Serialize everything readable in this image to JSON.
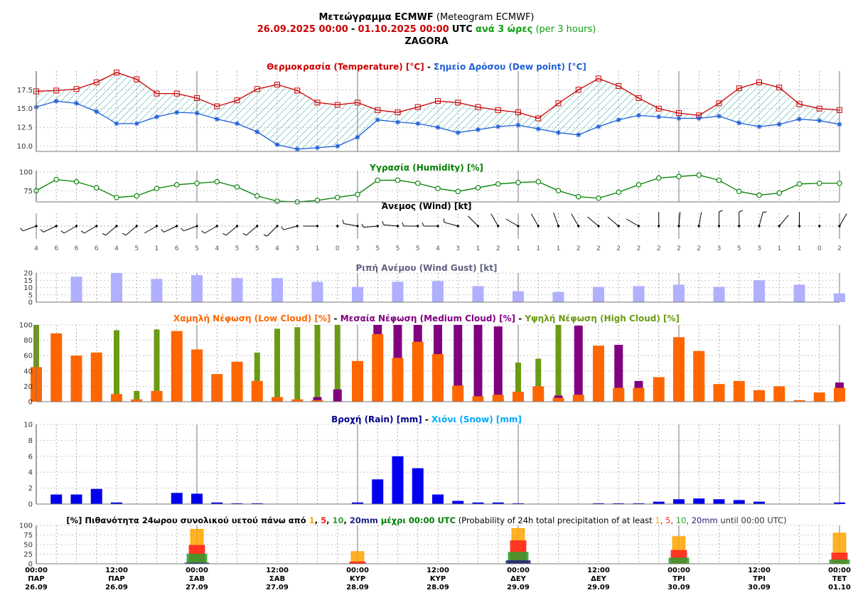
{
  "header": {
    "title_bold": "Μετεώγραμμα ECMWF",
    "title_normal": "(Meteogram ECMWF)",
    "date_from": "26.09.2025 00:00",
    "date_sep": "-",
    "date_to": "01.10.2025 00:00",
    "utc": "UTC",
    "step_gr": "ανά 3 ώρες",
    "step_en": "(per 3 hours)",
    "location": "ZAGORA"
  },
  "colors": {
    "temp": "#cc0000",
    "dew": "#1f5fd6",
    "humidity": "#008000",
    "gust": "#b0b0ff",
    "low_cloud": "#ff6600",
    "mid_cloud": "#800080",
    "high_cloud": "#6b9b13",
    "rain": "#0000ee",
    "snow": "#00aaff",
    "p1": "#ffa500",
    "p5": "#ff2020",
    "p10": "#30a030",
    "p20": "#202080"
  },
  "chart_data": [
    {
      "type": "line",
      "title_parts": [
        "Θερμοκρασία (Temperature) [°C]",
        " - ",
        "Σημείο Δρόσου (Dew point) [°C]"
      ],
      "y_ticks": [
        "10.0",
        "12.5",
        "15.0",
        "17.5"
      ],
      "ylim": [
        9.3,
        19.8
      ],
      "series": [
        {
          "name": "Θερμοκρασία (Temperature) [°C]",
          "values": [
            17.3,
            17.4,
            17.6,
            18.5,
            19.8,
            18.9,
            17.0,
            17.0,
            16.4,
            15.3,
            16.1,
            17.6,
            18.2,
            17.4,
            15.8,
            15.5,
            15.8,
            14.8,
            14.5,
            15.2,
            16.0,
            15.8,
            15.2,
            14.8,
            14.5,
            13.7,
            15.7,
            17.5,
            19.0,
            18.0,
            16.4,
            15.0,
            14.4,
            14.1,
            15.7,
            17.7,
            18.5,
            17.8,
            15.6,
            15.0,
            14.8
          ]
        },
        {
          "name": "Σημείο Δρόσου (Dew point) [°C]",
          "values": [
            15.2,
            16.0,
            15.7,
            14.6,
            13.0,
            13.0,
            13.9,
            14.5,
            14.4,
            13.6,
            13.0,
            11.9,
            10.2,
            9.6,
            9.8,
            10.0,
            11.2,
            13.5,
            13.2,
            13.0,
            12.5,
            11.8,
            12.2,
            12.6,
            12.8,
            12.3,
            11.8,
            11.5,
            12.6,
            13.5,
            14.1,
            13.9,
            13.7,
            13.7,
            14.0,
            13.1,
            12.6,
            12.9,
            13.6,
            13.4,
            12.9
          ]
        }
      ]
    },
    {
      "type": "line",
      "title": "Υγρασία (Humidity) [%]",
      "y_ticks": [
        "75",
        "100"
      ],
      "ylim": [
        60,
        100
      ],
      "series": [
        {
          "name": "Υγρασία (Humidity) [%]",
          "values": [
            75,
            90,
            87,
            79,
            66,
            68,
            78,
            83,
            85,
            87,
            80,
            68,
            61,
            60,
            62,
            66,
            70,
            89,
            89,
            85,
            78,
            74,
            79,
            84,
            86,
            87,
            75,
            67,
            65,
            73,
            83,
            92,
            94,
            96,
            89,
            74,
            69,
            72,
            84,
            85,
            85
          ]
        }
      ]
    },
    {
      "type": "wind",
      "title": "Άνεμος (Wind) [kt]",
      "speed_labels": [
        "4",
        "6",
        "6",
        "6",
        "4",
        "5",
        "1",
        "6",
        "5",
        "4",
        "5",
        "5",
        "4",
        "3",
        "1",
        "0",
        "3",
        "5",
        "5",
        "5",
        "4",
        "3",
        "1",
        "2",
        "1",
        "1",
        "1",
        "2",
        "2",
        "2",
        "2",
        "2",
        "2",
        "2",
        "3",
        "5",
        "3",
        "1",
        "1",
        "0",
        "2"
      ],
      "speed": [
        4,
        6,
        6,
        6,
        4,
        5,
        1,
        6,
        5,
        4,
        5,
        5,
        4,
        3,
        1,
        0,
        3,
        5,
        5,
        5,
        4,
        3,
        1,
        2,
        1,
        1,
        1,
        2,
        2,
        2,
        2,
        2,
        2,
        2,
        3,
        5,
        3,
        1,
        1,
        0,
        2
      ],
      "direction_deg": [
        250,
        245,
        240,
        240,
        230,
        230,
        240,
        245,
        250,
        240,
        230,
        230,
        225,
        255,
        270,
        0,
        280,
        265,
        275,
        270,
        270,
        285,
        315,
        330,
        300,
        330,
        340,
        330,
        310,
        310,
        300,
        0,
        5,
        10,
        0,
        0,
        15,
        40,
        0,
        0,
        30
      ]
    },
    {
      "type": "bar",
      "title": "Ριπή Ανέμου (Wind Gust) [kt]",
      "y_ticks": [
        "0",
        "5",
        "10",
        "15",
        "20"
      ],
      "ylim": [
        0,
        20
      ],
      "x_index": [
        2,
        4,
        6,
        8,
        10,
        12,
        14,
        16,
        18,
        20,
        22,
        24,
        26,
        28,
        30,
        32,
        34,
        36,
        38,
        40
      ],
      "values": [
        17.5,
        20,
        16,
        18.5,
        16.5,
        16.5,
        14,
        10.5,
        14,
        14.5,
        11,
        7.5,
        7,
        10.5,
        11,
        12,
        10.5,
        15,
        12,
        6
      ]
    },
    {
      "type": "bar",
      "title_parts": [
        "Χαμηλή Νέφωση (Low Cloud) [%]",
        " - ",
        "Μεσαία Νέφωση (Medium Cloud) [%]",
        " - ",
        "Υψηλή Νέφωση (High Cloud) [%]"
      ],
      "y_ticks": [
        "0",
        "20",
        "40",
        "60",
        "80",
        "100"
      ],
      "ylim": [
        0,
        100
      ],
      "series": [
        {
          "name": "Χαμηλή Νέφωση (Low Cloud) [%]",
          "values": [
            45,
            89,
            60,
            64,
            10,
            3,
            14,
            92,
            68,
            36,
            52,
            27,
            6,
            3,
            2,
            0,
            53,
            88,
            57,
            78,
            62,
            21,
            7,
            9,
            13,
            20,
            5,
            9,
            73,
            18,
            18,
            32,
            84,
            66,
            23,
            27,
            15,
            20,
            2,
            12,
            18
          ]
        },
        {
          "name": "Μεσαία Νέφωση (Medium Cloud) [%]",
          "values": [
            0,
            0,
            0,
            0,
            0,
            0,
            0,
            0,
            0,
            0,
            0,
            0,
            0,
            0,
            6,
            16,
            0,
            100,
            100,
            100,
            100,
            100,
            100,
            98,
            0,
            0,
            8,
            99,
            0,
            74,
            27,
            0,
            0,
            0,
            0,
            0,
            0,
            0,
            0,
            0,
            25
          ]
        },
        {
          "name": "Υψηλή Νέφωση (High Cloud) [%]",
          "values": [
            100,
            0,
            0,
            0,
            93,
            14,
            94,
            0,
            0,
            0,
            0,
            64,
            95,
            97,
            100,
            100,
            0,
            0,
            0,
            0,
            0,
            0,
            0,
            0,
            51,
            56,
            100,
            0,
            0,
            0,
            0,
            0,
            0,
            0,
            0,
            0,
            0,
            0,
            0,
            0,
            0
          ]
        }
      ]
    },
    {
      "type": "bar",
      "title_parts": [
        "Βροχή (Rain) [mm]",
        " - ",
        "Χιόνι (Snow) [mm]"
      ],
      "y_ticks": [
        "0",
        "2",
        "4",
        "6",
        "8",
        "10"
      ],
      "ylim": [
        0,
        10
      ],
      "series": [
        {
          "name": "Βροχή (Rain) [mm]",
          "values": [
            0,
            1.2,
            1.2,
            1.9,
            0.2,
            0,
            0,
            1.4,
            1.3,
            0.2,
            0.1,
            0.1,
            0,
            0,
            0,
            0,
            0.2,
            3.1,
            6.0,
            4.5,
            1.2,
            0.4,
            0.2,
            0.2,
            0.1,
            0,
            0,
            0,
            0.1,
            0.1,
            0.1,
            0.3,
            0.6,
            0.7,
            0.6,
            0.5,
            0.3,
            0,
            0,
            0,
            0.2
          ]
        },
        {
          "name": "Χιόνι (Snow) [mm]",
          "values": [
            0,
            0,
            0,
            0,
            0,
            0,
            0,
            0,
            0,
            0,
            0,
            0,
            0,
            0,
            0,
            0,
            0,
            0,
            0,
            0,
            0,
            0,
            0,
            0,
            0,
            0,
            0,
            0,
            0,
            0,
            0,
            0,
            0,
            0,
            0,
            0,
            0,
            0,
            0,
            0,
            0
          ]
        }
      ]
    },
    {
      "type": "bar",
      "title_parts": [
        "[%] Πιθανότητα 24ωρου συνολικού υετού πάνω από ",
        "1",
        ", ",
        "5",
        ", ",
        "10",
        ", ",
        "20mm",
        " μέχρι 00:00 UTC",
        " (Probability of 24h total precipitation of at least ",
        "1",
        ", ",
        "5",
        ", ",
        "10",
        ", ",
        "20mm",
        " until 00:00 UTC)"
      ],
      "y_ticks": [
        "0",
        "25",
        "50",
        "75",
        "100"
      ],
      "ylim": [
        0,
        100
      ],
      "x_index": [
        8,
        16,
        24,
        32,
        40
      ],
      "series": [
        {
          "name": "1",
          "values": [
            90,
            32,
            92,
            71,
            80
          ]
        },
        {
          "name": "5",
          "values": [
            48,
            5,
            60,
            35,
            28
          ]
        },
        {
          "name": "10",
          "values": [
            25,
            0,
            30,
            15,
            10
          ]
        },
        {
          "name": "20mm",
          "values": [
            2,
            0,
            8,
            0,
            0
          ]
        }
      ]
    }
  ],
  "x_axis": {
    "labels": [
      [
        "00:00",
        "ΠΑΡ",
        "26.09"
      ],
      [
        "12:00",
        "ΠΑΡ",
        "26.09"
      ],
      [
        "00:00",
        "ΣΑΒ",
        "27.09"
      ],
      [
        "12:00",
        "ΣΑΒ",
        "27.09"
      ],
      [
        "00:00",
        "ΚΥΡ",
        "28.09"
      ],
      [
        "12:00",
        "ΚΥΡ",
        "28.09"
      ],
      [
        "00:00",
        "ΔΕΥ",
        "29.09"
      ],
      [
        "12:00",
        "ΔΕΥ",
        "29.09"
      ],
      [
        "00:00",
        "ΤΡΙ",
        "30.09"
      ],
      [
        "12:00",
        "ΤΡΙ",
        "30.09"
      ],
      [
        "00:00",
        "ΤΕΤ",
        "01.10"
      ]
    ]
  }
}
